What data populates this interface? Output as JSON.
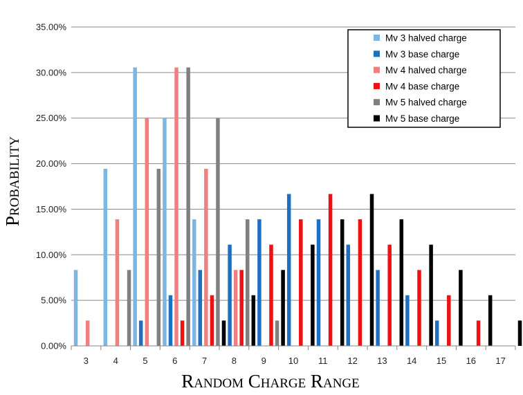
{
  "chart_data": {
    "type": "bar",
    "title": "",
    "xlabel": "Random Charge Range",
    "ylabel": "Probability",
    "categories": [
      "3",
      "4",
      "5",
      "6",
      "7",
      "8",
      "9",
      "10",
      "11",
      "12",
      "13",
      "14",
      "15",
      "16",
      "17"
    ],
    "ylim": [
      0,
      0.35
    ],
    "yticks": [
      "0.00%",
      "5.00%",
      "10.00%",
      "15.00%",
      "20.00%",
      "25.00%",
      "30.00%",
      "35.00%"
    ],
    "grid": true,
    "legend_position": "top-right",
    "series": [
      {
        "name": "Mv 3 halved charge",
        "color": "#7EB6E3",
        "values": [
          0.0833,
          0.1944,
          0.3056,
          0.25,
          0.1389,
          0.0278,
          0,
          0,
          0,
          0,
          0,
          0,
          0,
          0,
          0
        ]
      },
      {
        "name": "Mv 3 base charge",
        "color": "#1F6FC0",
        "values": [
          0,
          0,
          0.0278,
          0.0556,
          0.0833,
          0.1111,
          0.1389,
          0.1667,
          0.1389,
          0.1111,
          0.0833,
          0.0556,
          0.0278,
          0,
          0
        ]
      },
      {
        "name": "Mv 4 halved charge",
        "color": "#F08080",
        "values": [
          0.0278,
          0.1389,
          0.25,
          0.3056,
          0.1944,
          0.0833,
          0,
          0,
          0,
          0,
          0,
          0,
          0,
          0,
          0
        ]
      },
      {
        "name": "Mv 4 base charge",
        "color": "#EE1111",
        "values": [
          0,
          0,
          0,
          0.0278,
          0.0556,
          0.0833,
          0.1111,
          0.1389,
          0.1667,
          0.1389,
          0.1111,
          0.0833,
          0.0556,
          0.0278,
          0
        ]
      },
      {
        "name": "Mv 5 halved charge",
        "color": "#808080",
        "values": [
          0,
          0.0833,
          0.1944,
          0.3056,
          0.25,
          0.1389,
          0.0278,
          0,
          0,
          0,
          0,
          0,
          0,
          0,
          0
        ]
      },
      {
        "name": "Mv 5 base charge",
        "color": "#000000",
        "values": [
          0,
          0,
          0,
          0,
          0.0278,
          0.0556,
          0.0833,
          0.1111,
          0.1389,
          0.1667,
          0.1389,
          0.1111,
          0.0833,
          0.0556,
          0.0278
        ]
      }
    ]
  }
}
